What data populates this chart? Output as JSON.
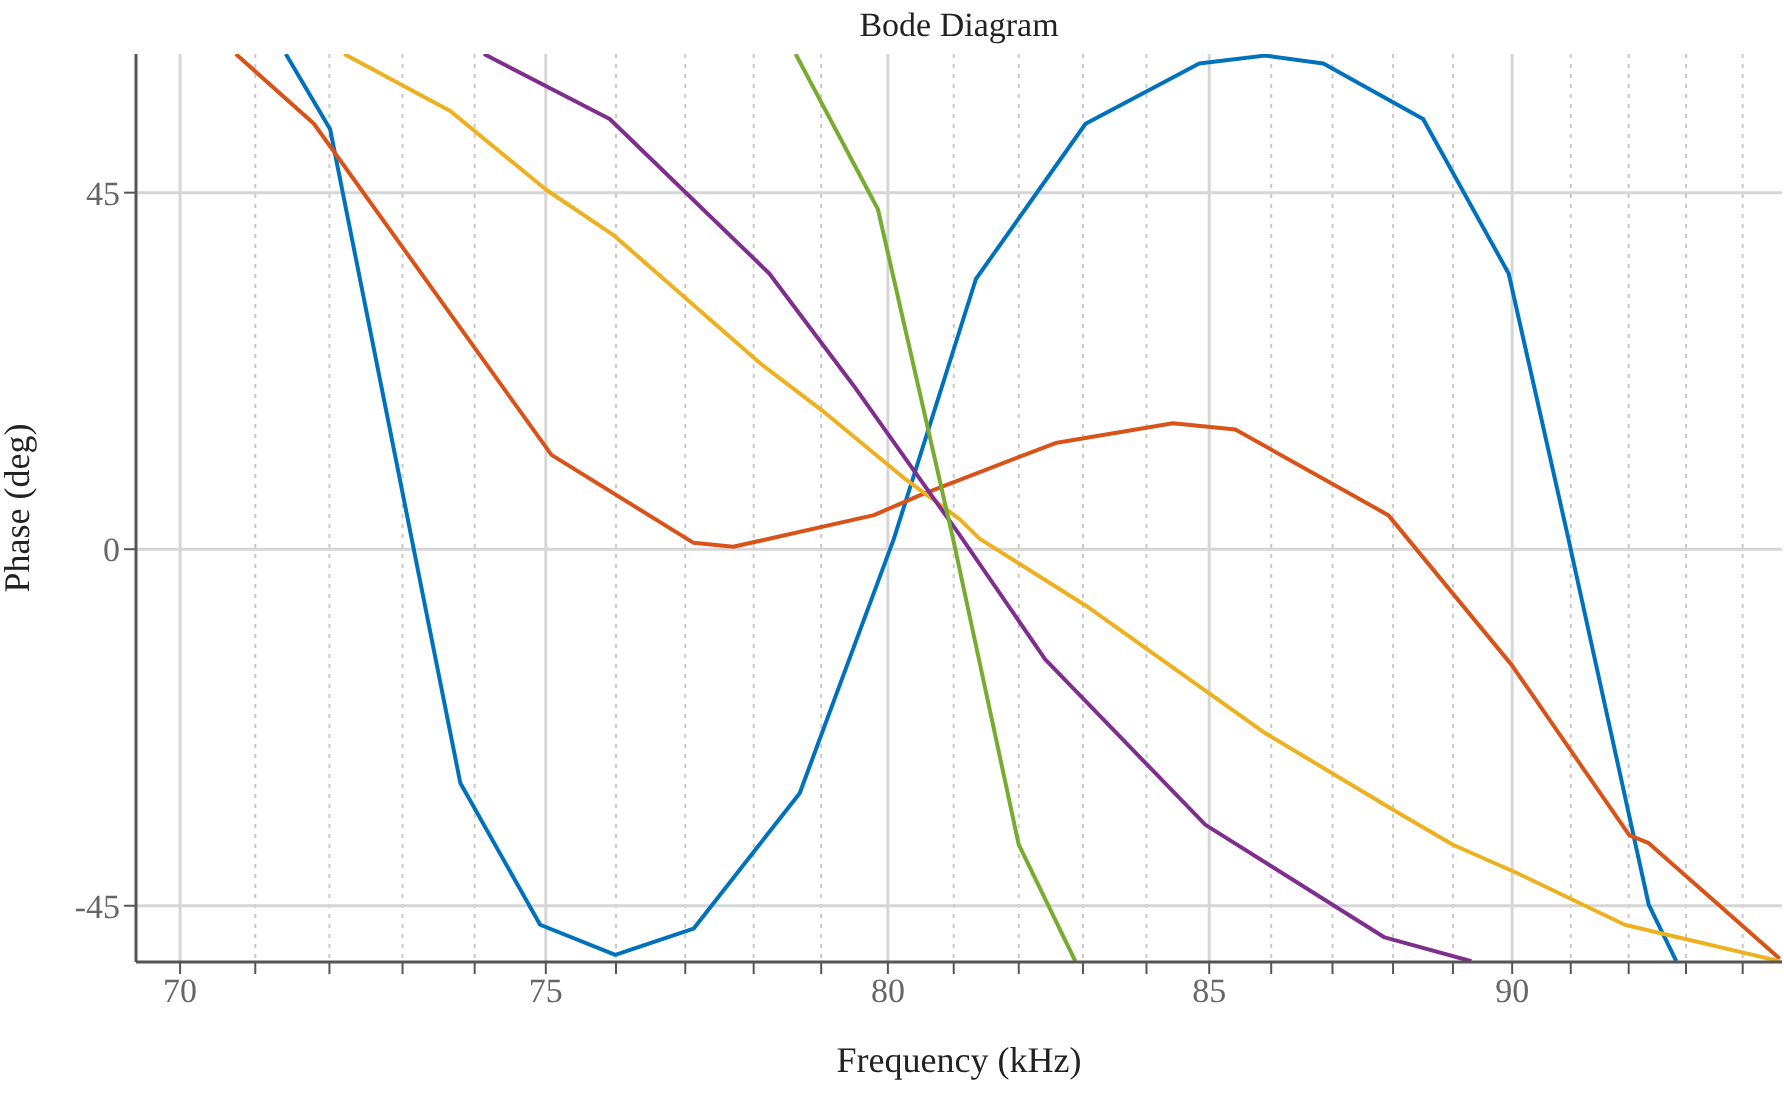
{
  "chart_data": {
    "type": "line",
    "title": "Bode Diagram",
    "xlabel": "Frequency  (kHz)",
    "ylabel": "Phase (deg)",
    "log": "x",
    "grid": true,
    "line_style": "solid",
    "marker": "none",
    "xlim": [
      69.42,
      94.7
    ],
    "ylim": [
      -52.1,
      62.5
    ],
    "xticks": [
      70,
      {
        "value": 71,
        "label": null
      },
      {
        "value": 72,
        "label": null
      },
      {
        "value": 73,
        "label": null
      },
      {
        "value": 74,
        "label": null
      },
      75,
      {
        "value": 76,
        "label": null
      },
      {
        "value": 77,
        "label": null
      },
      {
        "value": 78,
        "label": null
      },
      {
        "value": 79,
        "label": null
      },
      80,
      {
        "value": 81,
        "label": null
      },
      {
        "value": 82,
        "label": null
      },
      {
        "value": 83,
        "label": null
      },
      {
        "value": 84,
        "label": null
      },
      85,
      {
        "value": 86,
        "label": null
      },
      {
        "value": 87,
        "label": null
      },
      {
        "value": 88,
        "label": null
      },
      {
        "value": 89,
        "label": null
      },
      90,
      {
        "value": 91,
        "label": null
      },
      {
        "value": 92,
        "label": null
      },
      {
        "value": 93,
        "label": null
      },
      {
        "value": 94,
        "label": null
      }
    ],
    "yticks": [
      -45,
      0,
      45
    ],
    "series": [
      {
        "color": "#0072bd",
        "x": [
          71.41,
          72.01,
          73.8,
          74.92,
          75.99,
          77.12,
          78.68,
          80.09,
          81.34,
          83.04,
          84.84,
          85.9,
          86.85,
          88.5,
          89.94,
          90.96,
          92.35,
          92.83
        ],
        "values": [
          62.5,
          53.0,
          -29.5,
          -47.4,
          -51.2,
          -47.9,
          -30.8,
          1.3,
          34.1,
          53.7,
          61.3,
          62.3,
          61.3,
          54.3,
          34.8,
          1.3,
          -44.9,
          -52.0
        ]
      },
      {
        "color": "#d95319",
        "x": [
          70.74,
          71.79,
          75.08,
          77.12,
          77.7,
          79.79,
          80.48,
          82.57,
          84.42,
          85.42,
          87.92,
          89.99,
          92.01,
          92.35,
          94.66
        ],
        "values": [
          62.5,
          53.7,
          11.9,
          0.8,
          0.3,
          4.3,
          6.8,
          13.4,
          15.9,
          15.1,
          4.3,
          -14.6,
          -36.1,
          -37.1,
          -51.7
        ]
      },
      {
        "color": "#edb120",
        "x": [
          72.2,
          73.66,
          75.0,
          75.97,
          78.09,
          79.06,
          80.27,
          81.09,
          81.4,
          83.04,
          85.9,
          88.09,
          89.0,
          90.09,
          91.93,
          94.66
        ],
        "values": [
          62.5,
          55.3,
          45.4,
          39.6,
          23.5,
          17.2,
          8.8,
          3.8,
          1.3,
          -7.1,
          -23.2,
          -33.3,
          -37.3,
          -40.9,
          -47.4,
          -52.0
        ]
      },
      {
        "color": "#7e2f8e",
        "x": [
          74.13,
          75.91,
          78.23,
          79.48,
          81.09,
          82.41,
          84.94,
          87.86,
          89.31
        ],
        "values": [
          62.5,
          54.3,
          34.8,
          20.7,
          1.8,
          -13.9,
          -34.8,
          -49.0,
          -52.0
        ]
      },
      {
        "color": "#77ac30",
        "x": [
          78.62,
          79.85,
          80.99,
          82.0,
          82.88
        ],
        "values": [
          62.5,
          42.9,
          1.3,
          -37.3,
          -52.0
        ]
      }
    ]
  }
}
